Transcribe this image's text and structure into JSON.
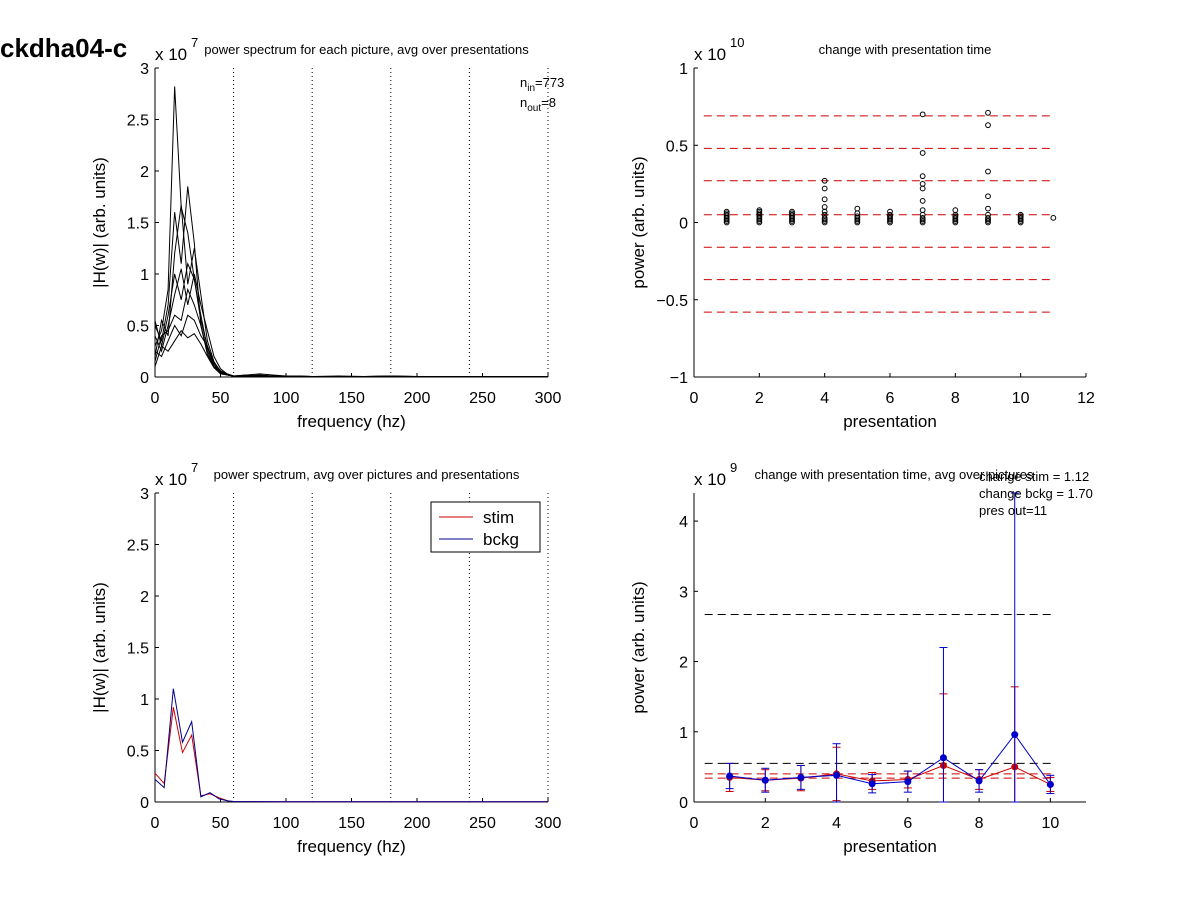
{
  "figure": {
    "id_label": "ckdha04-c"
  },
  "chart_data": [
    {
      "type": "line",
      "panel": "top-left",
      "title": "power spectrum for each picture, avg over presentations",
      "exponent_label": "x 10",
      "exponent": "7",
      "xlabel": "frequency (hz)",
      "ylabel": "|H(w)| (arb. units)",
      "xlim": [
        0,
        300
      ],
      "ylim": [
        0,
        3
      ],
      "xticks": [
        0,
        50,
        100,
        150,
        200,
        250,
        300
      ],
      "xtick_labels": [
        "0",
        "50",
        "100",
        "150",
        "200",
        "250",
        "300"
      ],
      "yticks": [
        0,
        0.5,
        1,
        1.5,
        2,
        2.5,
        3
      ],
      "ytick_labels": [
        "0",
        "0.5",
        "1",
        "1.5",
        "2",
        "2.5",
        "3"
      ],
      "vlines": [
        60,
        120,
        180,
        240,
        300
      ],
      "annotations": [
        {
          "base": "n",
          "sub": "in",
          "value": "=773"
        },
        {
          "base": "n",
          "sub": "out",
          "value": "=8"
        }
      ],
      "x": [
        0,
        5,
        10,
        15,
        20,
        25,
        30,
        35,
        40,
        45,
        50,
        55,
        60,
        70,
        80,
        90,
        100,
        110,
        120,
        140,
        160,
        180,
        200,
        250,
        300
      ],
      "series": [
        {
          "color": "#000000",
          "values": [
            0.3,
            0.45,
            0.85,
            2.82,
            1.65,
            1.4,
            0.95,
            0.55,
            0.3,
            0.12,
            0.06,
            0.03,
            0.01,
            0.01,
            0.02,
            0.01,
            0.01,
            0.01,
            0.005,
            0.005,
            0.005,
            0.01,
            0.005,
            0.003,
            0.002
          ]
        },
        {
          "color": "#000000",
          "values": [
            0.5,
            0.35,
            0.7,
            1.6,
            1.1,
            1.85,
            1.3,
            0.5,
            0.25,
            0.1,
            0.05,
            0.02,
            0.01,
            0.02,
            0.03,
            0.02,
            0.01,
            0.01,
            0.005,
            0.01,
            0.005,
            0.01,
            0.005,
            0.003,
            0.002
          ]
        },
        {
          "color": "#000000",
          "values": [
            0.2,
            0.55,
            0.4,
            1.2,
            1.67,
            0.9,
            1.25,
            0.8,
            0.35,
            0.15,
            0.05,
            0.02,
            0.01,
            0.01,
            0.01,
            0.01,
            0.01,
            0.005,
            0.005,
            0.005,
            0.005,
            0.005,
            0.005,
            0.003,
            0.002
          ]
        },
        {
          "color": "#000000",
          "values": [
            0.1,
            0.3,
            0.6,
            1.0,
            0.75,
            1.1,
            0.95,
            0.6,
            0.28,
            0.12,
            0.04,
            0.02,
            0.01,
            0.01,
            0.01,
            0.01,
            0.01,
            0.005,
            0.005,
            0.005,
            0.005,
            0.005,
            0.005,
            0.003,
            0.002
          ]
        },
        {
          "color": "#000000",
          "values": [
            0.4,
            0.25,
            0.5,
            0.8,
            1.05,
            0.7,
            1.0,
            0.7,
            0.45,
            0.2,
            0.08,
            0.03,
            0.01,
            0.02,
            0.01,
            0.01,
            0.01,
            0.005,
            0.005,
            0.005,
            0.005,
            0.005,
            0.005,
            0.003,
            0.002
          ]
        },
        {
          "color": "#000000",
          "values": [
            0.15,
            0.4,
            0.45,
            0.6,
            0.55,
            0.85,
            0.7,
            0.5,
            0.22,
            0.1,
            0.04,
            0.02,
            0.01,
            0.01,
            0.01,
            0.01,
            0.01,
            0.005,
            0.005,
            0.005,
            0.005,
            0.005,
            0.005,
            0.003,
            0.002
          ]
        },
        {
          "color": "#000000",
          "values": [
            0.25,
            0.2,
            0.35,
            0.5,
            0.4,
            0.6,
            0.55,
            0.4,
            0.3,
            0.14,
            0.06,
            0.02,
            0.01,
            0.01,
            0.01,
            0.01,
            0.01,
            0.005,
            0.005,
            0.005,
            0.005,
            0.005,
            0.005,
            0.003,
            0.002
          ]
        },
        {
          "color": "#000000",
          "values": [
            0.55,
            0.3,
            0.25,
            0.35,
            0.45,
            0.38,
            0.42,
            0.32,
            0.2,
            0.09,
            0.03,
            0.02,
            0.01,
            0.01,
            0.01,
            0.01,
            0.01,
            0.005,
            0.005,
            0.005,
            0.005,
            0.005,
            0.005,
            0.003,
            0.002
          ]
        }
      ]
    },
    {
      "type": "scatter",
      "panel": "top-right",
      "title": "change with presentation time",
      "exponent_label": "x 10",
      "exponent": "10",
      "xlabel": "presentation",
      "ylabel": "power (arb. units)",
      "xlim": [
        0,
        12
      ],
      "ylim": [
        -1,
        1
      ],
      "xticks": [
        0,
        2,
        4,
        6,
        8,
        10,
        12
      ],
      "xtick_labels": [
        "0",
        "2",
        "4",
        "6",
        "8",
        "10",
        "12"
      ],
      "yticks": [
        -1,
        -0.5,
        0,
        0.5,
        1
      ],
      "ytick_labels": [
        "−1",
        "−0.5",
        "0",
        "0.5",
        "1"
      ],
      "hlines": [
        0.69,
        0.48,
        0.27,
        0.05,
        -0.16,
        -0.37,
        -0.58
      ],
      "hlines_color": "#cc0000",
      "points": [
        [
          1,
          0.0
        ],
        [
          1,
          0.01
        ],
        [
          1,
          0.02
        ],
        [
          1,
          0.03
        ],
        [
          1,
          0.04
        ],
        [
          1,
          0.05
        ],
        [
          1,
          0.06
        ],
        [
          1,
          0.07
        ],
        [
          2,
          0.0
        ],
        [
          2,
          0.01
        ],
        [
          2,
          0.02
        ],
        [
          2,
          0.03
        ],
        [
          2,
          0.04
        ],
        [
          2,
          0.05
        ],
        [
          2,
          0.06
        ],
        [
          2,
          0.07
        ],
        [
          2,
          0.08
        ],
        [
          3,
          0.0
        ],
        [
          3,
          0.01
        ],
        [
          3,
          0.02
        ],
        [
          3,
          0.03
        ],
        [
          3,
          0.04
        ],
        [
          3,
          0.05
        ],
        [
          3,
          0.06
        ],
        [
          3,
          0.07
        ],
        [
          4,
          0.0
        ],
        [
          4,
          0.01
        ],
        [
          4,
          0.02
        ],
        [
          4,
          0.03
        ],
        [
          4,
          0.05
        ],
        [
          4,
          0.07
        ],
        [
          4,
          0.1
        ],
        [
          4,
          0.15
        ],
        [
          4,
          0.22
        ],
        [
          4,
          0.27
        ],
        [
          5,
          0.0
        ],
        [
          5,
          0.01
        ],
        [
          5,
          0.02
        ],
        [
          5,
          0.03
        ],
        [
          5,
          0.04
        ],
        [
          5,
          0.06
        ],
        [
          5,
          0.09
        ],
        [
          6,
          0.0
        ],
        [
          6,
          0.01
        ],
        [
          6,
          0.02
        ],
        [
          6,
          0.03
        ],
        [
          6,
          0.04
        ],
        [
          6,
          0.05
        ],
        [
          6,
          0.07
        ],
        [
          7,
          0.0
        ],
        [
          7,
          0.01
        ],
        [
          7,
          0.02
        ],
        [
          7,
          0.03
        ],
        [
          7,
          0.05
        ],
        [
          7,
          0.08
        ],
        [
          7,
          0.14
        ],
        [
          7,
          0.22
        ],
        [
          7,
          0.25
        ],
        [
          7,
          0.3
        ],
        [
          7,
          0.45
        ],
        [
          7,
          0.7
        ],
        [
          8,
          0.0
        ],
        [
          8,
          0.01
        ],
        [
          8,
          0.02
        ],
        [
          8,
          0.03
        ],
        [
          8,
          0.04
        ],
        [
          8,
          0.05
        ],
        [
          8,
          0.08
        ],
        [
          9,
          0.0
        ],
        [
          9,
          0.01
        ],
        [
          9,
          0.02
        ],
        [
          9,
          0.03
        ],
        [
          9,
          0.05
        ],
        [
          9,
          0.09
        ],
        [
          9,
          0.17
        ],
        [
          9,
          0.33
        ],
        [
          9,
          0.63
        ],
        [
          9,
          0.71
        ],
        [
          10,
          0.0
        ],
        [
          10,
          0.01
        ],
        [
          10,
          0.02
        ],
        [
          10,
          0.03
        ],
        [
          10,
          0.04
        ],
        [
          10,
          0.05
        ],
        [
          11,
          0.03
        ]
      ]
    },
    {
      "type": "line",
      "panel": "bottom-left",
      "title": "power spectrum, avg over pictures and presentations",
      "exponent_label": "x 10",
      "exponent": "7",
      "xlabel": "frequency (hz)",
      "ylabel": "|H(w)| (arb. units)",
      "xlim": [
        0,
        300
      ],
      "ylim": [
        0,
        3
      ],
      "xticks": [
        0,
        50,
        100,
        150,
        200,
        250,
        300
      ],
      "xtick_labels": [
        "0",
        "50",
        "100",
        "150",
        "200",
        "250",
        "300"
      ],
      "yticks": [
        0,
        0.5,
        1,
        1.5,
        2,
        2.5,
        3
      ],
      "ytick_labels": [
        "0",
        "0.5",
        "1",
        "1.5",
        "2",
        "2.5",
        "3"
      ],
      "vlines": [
        60,
        120,
        180,
        240,
        300
      ],
      "legend": "top-right",
      "x": [
        0,
        7,
        14,
        21,
        28,
        35,
        42,
        49,
        56,
        60,
        100,
        150,
        200,
        250,
        300
      ],
      "series": [
        {
          "name": "stim",
          "color": "#cc0000",
          "values": [
            0.28,
            0.18,
            0.92,
            0.48,
            0.65,
            0.06,
            0.08,
            0.04,
            0.01,
            0.005,
            0.003,
            0.002,
            0.002,
            0.002,
            0.002
          ]
        },
        {
          "name": "bckg",
          "color": "#00008b",
          "values": [
            0.22,
            0.14,
            1.1,
            0.58,
            0.78,
            0.05,
            0.09,
            0.03,
            0.01,
            0.005,
            0.003,
            0.002,
            0.002,
            0.002,
            0.002
          ]
        }
      ]
    },
    {
      "type": "line",
      "panel": "bottom-right",
      "title": "change with presentation time, avg over pictures",
      "exponent_label": "x 10",
      "exponent": "9",
      "xlabel": "presentation",
      "ylabel": "power (arb. units)",
      "xlim": [
        0,
        11
      ],
      "ylim": [
        0,
        4.4
      ],
      "xticks": [
        0,
        2,
        4,
        6,
        8,
        10
      ],
      "xtick_labels": [
        "0",
        "2",
        "4",
        "6",
        "8",
        "10"
      ],
      "yticks": [
        0,
        1,
        2,
        3,
        4
      ],
      "ytick_labels": [
        "0",
        "1",
        "2",
        "3",
        "4"
      ],
      "annotations": [
        "change stim = 1.12",
        "change bckg = 1.70",
        "pres out=11"
      ],
      "hlines_black": [
        2.67,
        0.55
      ],
      "hlines_red": [
        0.4,
        0.34
      ],
      "x": [
        1,
        2,
        3,
        4,
        5,
        6,
        7,
        8,
        9,
        10
      ],
      "series": [
        {
          "name": "stim",
          "color": "#cc0000",
          "values": [
            0.35,
            0.31,
            0.34,
            0.4,
            0.3,
            0.32,
            0.52,
            0.32,
            0.5,
            0.25
          ],
          "err": [
            0.2,
            0.15,
            0.18,
            0.38,
            0.12,
            0.12,
            1.02,
            0.14,
            1.14,
            0.1
          ]
        },
        {
          "name": "bckg",
          "color": "#0000cc",
          "values": [
            0.37,
            0.31,
            0.35,
            0.38,
            0.26,
            0.29,
            0.63,
            0.3,
            0.96,
            0.25
          ],
          "err": [
            0.18,
            0.17,
            0.17,
            0.45,
            0.13,
            0.15,
            1.57,
            0.16,
            3.5,
            0.13
          ]
        }
      ]
    }
  ]
}
